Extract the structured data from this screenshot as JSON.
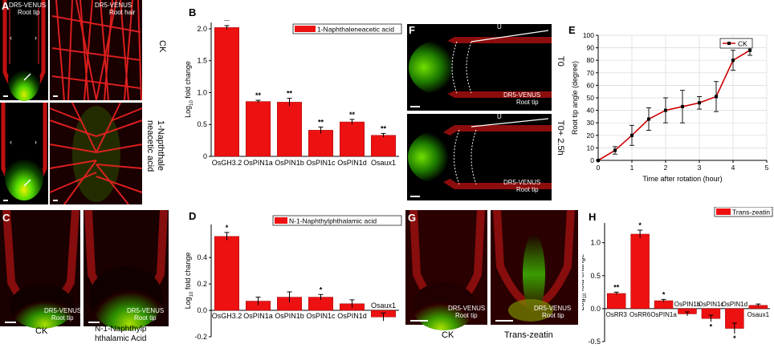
{
  "panels": {
    "A": {
      "label": "A",
      "tile1": {
        "line1": "DR5-VENUS",
        "line2": "Root tip"
      },
      "tile2": {
        "line1": "DR5-VENUS",
        "line2": "Root hair"
      },
      "row1": "CK",
      "row2_l1": "1-Napththale",
      "row2_l2": "neacetic acid"
    },
    "B": {
      "label": "B"
    },
    "C": {
      "label": "C",
      "tile": {
        "line1": "DR5-VENUS",
        "line2": "Root tip"
      },
      "cap1": "CK",
      "cap2_l1": "N-1-Naphthylp",
      "cap2_l2": "hthalamic Acid"
    },
    "D": {
      "label": "D"
    },
    "E": {
      "label": "E"
    },
    "F": {
      "label": "F",
      "u": "U",
      "tile": {
        "line1": "DR5-VENUS",
        "line2": "Root tip"
      },
      "row1": "T0",
      "row2": "T0+ 2.5h"
    },
    "G": {
      "label": "G",
      "tile": {
        "line1": "DR5-VENUS",
        "line2": "Root tip"
      },
      "cap1": "CK",
      "cap2": "Trans-zeatin"
    },
    "H": {
      "label": "H"
    }
  },
  "colors": {
    "bar": "#ee1111",
    "line": "#cc0000"
  },
  "chart_data": [
    {
      "id": "B",
      "type": "bar",
      "ylabel_main": "Log",
      "ylabel_sub": "10",
      "ylabel_rest": " fold change",
      "ylim": [
        0,
        2.1
      ],
      "yticks": [
        "0",
        "0.5",
        "1.0",
        "1.5",
        "2.0"
      ],
      "ytick_values": [
        0,
        0.5,
        1.0,
        1.5,
        2.0
      ],
      "legend": "1-Naphthaleneacetic acid",
      "categories": [
        "OsGH3.2",
        "OsPIN1a",
        "OsPIN1b",
        "OsPIN1c",
        "OsPIN1d",
        "Osaux1"
      ],
      "values": [
        2.02,
        0.86,
        0.85,
        0.41,
        0.54,
        0.33
      ],
      "errors": [
        0.03,
        0.02,
        0.06,
        0.05,
        0.04,
        0.03
      ],
      "sig": [
        "**",
        "**",
        "**",
        "**",
        "**",
        "**"
      ]
    },
    {
      "id": "D",
      "type": "bar",
      "ylabel_main": "Log",
      "ylabel_sub": "10",
      "ylabel_rest": " fold change",
      "ylim": [
        -0.2,
        0.65
      ],
      "yticks": [
        "-0.2",
        "0.0",
        "0.2",
        "0.4"
      ],
      "ytick_values": [
        -0.2,
        0.0,
        0.2,
        0.4
      ],
      "legend": "N-1-Naphthylphthalamic acid",
      "categories": [
        "OsGH3.2",
        "OsPIN1a",
        "OsPIN1b",
        "OsPIN1c",
        "OsPIN1d",
        "Osaux1"
      ],
      "values": [
        0.56,
        0.07,
        0.1,
        0.1,
        0.05,
        -0.05
      ],
      "errors": [
        0.03,
        0.03,
        0.04,
        0.02,
        0.03,
        0.03
      ],
      "sig": [
        "*",
        "",
        "",
        "*",
        "",
        ""
      ]
    },
    {
      "id": "E",
      "type": "line",
      "xlabel": "Time after rotation (hour)",
      "ylabel": "Root tip angle (degree)",
      "xlim": [
        0,
        5
      ],
      "ylim": [
        0,
        100
      ],
      "xticks": [
        0,
        1,
        2,
        3,
        4,
        5
      ],
      "yticks": [
        0,
        10,
        20,
        30,
        40,
        50,
        60,
        70,
        80,
        90,
        100
      ],
      "grid": true,
      "legend_position": "top-right",
      "series": [
        {
          "name": "CK",
          "x": [
            0,
            0.5,
            1,
            1.5,
            2,
            2.5,
            3,
            3.5,
            4,
            4.5
          ],
          "y": [
            0,
            8,
            20,
            33,
            40,
            43,
            46,
            51,
            80,
            88
          ],
          "err": [
            0,
            3,
            8,
            9,
            10,
            13,
            5,
            12,
            8,
            4
          ]
        }
      ]
    },
    {
      "id": "H",
      "type": "bar",
      "ylabel_main": "Log",
      "ylabel_sub": "10",
      "ylabel_rest": " fold change",
      "ylim": [
        -0.5,
        1.3
      ],
      "yticks": [
        "-0.5",
        "0.0",
        "0.5",
        "1.0"
      ],
      "ytick_values": [
        -0.5,
        0.0,
        0.5,
        1.0
      ],
      "legend": "Trans-zeatin",
      "categories": [
        "OsRR3",
        "OsRR6",
        "OsPIN1a",
        "OsPIN1b",
        "OsPIN1c",
        "OsPIN1d",
        "Osaux1"
      ],
      "values": [
        0.23,
        1.13,
        0.12,
        -0.08,
        -0.15,
        -0.3,
        0.05
      ],
      "errors": [
        0.02,
        0.06,
        0.02,
        0.03,
        0.05,
        0.08,
        0.02
      ],
      "sig": [
        "**",
        "*",
        "*",
        "",
        "*",
        "*",
        ""
      ]
    }
  ]
}
